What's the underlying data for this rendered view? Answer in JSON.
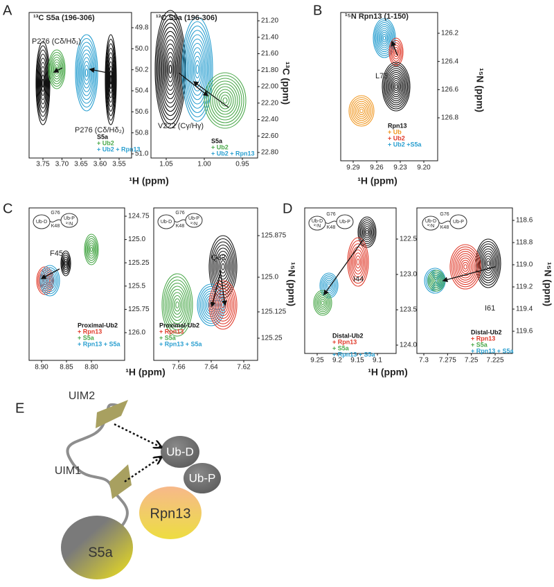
{
  "panels": [
    {
      "letter": "A",
      "xlabel": "¹H (ppm)",
      "ylabel": "¹³C (ppm)",
      "plots": [
        {
          "title": "¹³C S5a (196-306)",
          "xticks": [
            "3.75",
            "3.70",
            "3.65",
            "3.60",
            "3.55"
          ],
          "yticks": [
            "49.8",
            "50.0",
            "50.2",
            "50.4",
            "50.6",
            "50.8",
            "51.0"
          ],
          "annotations": [
            "P276 (Cδ/Hδ₁)",
            "P276 (Cδ/Hδ₂)"
          ],
          "legend": [
            {
              "text": "S5a",
              "color": "#111111"
            },
            {
              "text": "+ Ub2",
              "color": "#4aa84a"
            },
            {
              "text": "+ Ub2 + Rpn13",
              "color": "#2a9fd0"
            }
          ]
        },
        {
          "title": "¹³C S5a (196-306)",
          "xticks": [
            "1.05",
            "1.00",
            "0.95"
          ],
          "yticks": [
            "21.20",
            "21.40",
            "21.60",
            "21.80",
            "22.00",
            "22.20",
            "22.40",
            "22.60",
            "22.80"
          ],
          "annotations": [
            "V222 (Cγ/Hγ)"
          ],
          "legend": [
            {
              "text": "S5a",
              "color": "#111111"
            },
            {
              "text": "+ Ub2",
              "color": "#4aa84a"
            },
            {
              "text": "+ Ub2 + Rpn13",
              "color": "#2a9fd0"
            }
          ]
        }
      ]
    },
    {
      "letter": "B",
      "xlabel": "¹H (ppm)",
      "ylabel": "¹⁵N (ppm)",
      "plots": [
        {
          "title": "¹⁵N Rpn13 (1-150)",
          "xticks": [
            "9.29",
            "9.26",
            "9.23",
            "9.20"
          ],
          "yticks": [
            "126.2",
            "126.4",
            "126.6",
            "126.8"
          ],
          "annotations": [
            "L73"
          ],
          "legend": [
            {
              "text": "Rpn13",
              "color": "#111111"
            },
            {
              "text": "+ Ub",
              "color": "#f0961e"
            },
            {
              "text": "+ Ub2",
              "color": "#e03a2a"
            },
            {
              "text": "+ Ub2 +S5a",
              "color": "#2a9fd0"
            }
          ]
        }
      ]
    },
    {
      "letter": "C",
      "xlabel": "¹H (ppm)",
      "ylabel": "¹⁵N (ppm)",
      "plots": [
        {
          "inset": [
            "Ub-D",
            "G76",
            "K48",
            "Ub-P",
            "¹⁵N"
          ],
          "xticks": [
            "8.90",
            "8.85",
            "8.80"
          ],
          "yticks": [
            "124.75",
            "125.0",
            "125.25",
            "125.5",
            "125.75",
            "126.0"
          ],
          "annotations": [
            "F45"
          ],
          "legend": [
            {
              "text": "Proximal-Ub2",
              "color": "#111111"
            },
            {
              "text": "+ Rpn13",
              "color": "#e03a2a"
            },
            {
              "text": "+ S5a",
              "color": "#4aa84a"
            },
            {
              "text": "+ Rpn13 + S5a",
              "color": "#2a9fd0"
            }
          ]
        },
        {
          "inset": [
            "Ub-D",
            "G76",
            "K48",
            "Ub-P",
            "¹⁵N"
          ],
          "xticks": [
            "7.66",
            "7.64",
            "7.62"
          ],
          "yticks": [
            "125.875",
            "125.0",
            "125.125",
            "125.25"
          ],
          "annotations": [
            "Q62"
          ],
          "legend": [
            {
              "text": "Proximal-Ub2",
              "color": "#111111"
            },
            {
              "text": "+ Rpn13",
              "color": "#e03a2a"
            },
            {
              "text": "+ S5a",
              "color": "#4aa84a"
            },
            {
              "text": "+ Rpn13 + S5a",
              "color": "#2a9fd0"
            }
          ]
        }
      ]
    },
    {
      "letter": "D",
      "xlabel": "¹H (ppm)",
      "ylabel": "¹⁵N (ppm)",
      "plots": [
        {
          "inset": [
            "Ub-D",
            "G76",
            "K48",
            "Ub-P",
            "¹⁵N"
          ],
          "xticks": [
            "9.25",
            "9.2",
            "9.15",
            "9.1"
          ],
          "yticks": [
            "122.5",
            "123.0",
            "123.5",
            "124.0"
          ],
          "annotations": [
            "I44"
          ],
          "legend": [
            {
              "text": "Distal-Ub2",
              "color": "#111111"
            },
            {
              "text": "+ Rpn13",
              "color": "#e03a2a"
            },
            {
              "text": "+ S5a",
              "color": "#4aa84a"
            },
            {
              "text": "+ Rpn13 + S5a",
              "color": "#2a9fd0"
            }
          ]
        },
        {
          "inset": [
            "Ub-D",
            "G76",
            "K48",
            "Ub-P",
            "¹⁵N"
          ],
          "xticks": [
            "7.3",
            "7.275",
            "7.25",
            "7.225"
          ],
          "yticks": [
            "118.6",
            "118.8",
            "119.0",
            "119.2",
            "119.4",
            "119.6"
          ],
          "annotations": [
            "I61"
          ],
          "legend": [
            {
              "text": "Distal-Ub2",
              "color": "#111111"
            },
            {
              "text": "+ Rpn13",
              "color": "#e03a2a"
            },
            {
              "text": "+ S5a",
              "color": "#4aa84a"
            },
            {
              "text": "+ Rpn13 + S5a",
              "color": "#2a9fd0"
            }
          ]
        }
      ]
    }
  ],
  "diagram": {
    "letter": "E",
    "labels": [
      "UIM2",
      "UIM1",
      "Ub-D",
      "Ub-P",
      "Rpn13",
      "S5a"
    ]
  }
}
